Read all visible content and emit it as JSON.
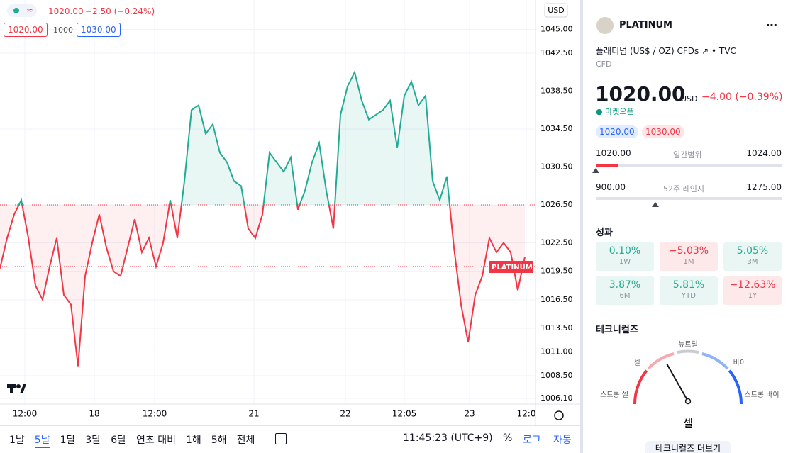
{
  "legend": {
    "price": "1020.00",
    "change": "−2.50 (−0.24%)",
    "bid": "1020.00",
    "spread": "1000",
    "ask": "1030.00"
  },
  "chart_data": {
    "type": "line",
    "currency": "USD",
    "last_price_label": "PLATINUM",
    "values": [
      1019.8,
      1023.0,
      1025.5,
      1027.0,
      1023.0,
      1018.0,
      1016.5,
      1020.0,
      1023.0,
      1017.0,
      1016.0,
      1009.5,
      1019.0,
      1022.5,
      1025.5,
      1022.0,
      1019.5,
      1019.0,
      1022.0,
      1025.0,
      1021.5,
      1023.0,
      1020.0,
      1022.5,
      1027.0,
      1023.0,
      1029.0,
      1036.5,
      1037.0,
      1034.0,
      1035.0,
      1032.0,
      1031.0,
      1029.0,
      1028.5,
      1024.0,
      1023.0,
      1025.5,
      1032.0,
      1031.0,
      1030.0,
      1031.5,
      1026.0,
      1028.0,
      1031.0,
      1033.0,
      1028.0,
      1024.0,
      1036.0,
      1039.0,
      1040.5,
      1037.5,
      1035.5,
      1036.0,
      1036.5,
      1037.5,
      1032.5,
      1038.0,
      1039.5,
      1037.0,
      1038.0,
      1029.0,
      1027.0,
      1029.5,
      1022.0,
      1016.0,
      1012.0,
      1017.0,
      1019.0,
      1023.0,
      1021.5,
      1022.5,
      1021.5,
      1017.5,
      1021.0
    ],
    "baseline": 1026.5,
    "price_line": 1020,
    "up_color": "#22ab94",
    "down_color": "#f23645",
    "grid": true,
    "xlim": [
      0,
      75.5
    ],
    "ylim": [
      1005.5,
      1048.1
    ],
    "yticks": [
      {
        "value": 1045,
        "label": "1045.00"
      },
      {
        "value": 1042.5,
        "label": "1042.50"
      },
      {
        "value": 1038.5,
        "label": "1038.50"
      },
      {
        "value": 1034.5,
        "label": "1034.50"
      },
      {
        "value": 1030.5,
        "label": "1030.50"
      },
      {
        "value": 1026.5,
        "label": "1026.50"
      },
      {
        "value": 1022.5,
        "label": "1022.50"
      },
      {
        "value": 1019.5,
        "label": "1019.50"
      },
      {
        "value": 1016.5,
        "label": "1016.50"
      },
      {
        "value": 1013.5,
        "label": "1013.50"
      },
      {
        "value": 1011,
        "label": "1011.00"
      },
      {
        "value": 1008.5,
        "label": "1008.50"
      },
      {
        "value": 1006.1,
        "label": "1006.10"
      }
    ],
    "xticks": [
      {
        "value": 3.5,
        "label": "12:00"
      },
      {
        "value": 13.3,
        "label": "18"
      },
      {
        "value": 21.8,
        "label": "12:00"
      },
      {
        "value": 35.8,
        "label": "21"
      },
      {
        "value": 48.7,
        "label": "22"
      },
      {
        "value": 57,
        "label": "12:05"
      },
      {
        "value": 66.2,
        "label": "23"
      },
      {
        "value": 74.2,
        "label": "12:0"
      }
    ]
  },
  "toolbar": {
    "ranges": [
      "1날",
      "5날",
      "1달",
      "3달",
      "6달",
      "연초 대비",
      "1해",
      "5해",
      "전체"
    ],
    "active_range": "5날",
    "clock": "11:45:23 (UTC+9)",
    "percent": "%",
    "log": "로그",
    "auto": "자동"
  },
  "panel": {
    "symbol": "PLATINUM",
    "description": "플래티넘 (US$ / OZ) CFDs",
    "exchange": "TVC",
    "kind": "CFD",
    "price": "1020.00",
    "currency": "USD",
    "change": "−4.00 (−0.39%)",
    "status": "마켓오픈",
    "bid": "1020.00",
    "ask": "1030.00",
    "day_range": {
      "low": "1020.00",
      "label": "일간범위",
      "high": "1024.00"
    },
    "year_range": {
      "low": "900.00",
      "label": "52주 레인지",
      "high": "1275.00"
    },
    "performance_title": "성과",
    "performance": [
      {
        "value": "0.10%",
        "period": "1W"
      },
      {
        "value": "−5.03%",
        "period": "1M"
      },
      {
        "value": "5.05%",
        "period": "3M"
      },
      {
        "value": "3.87%",
        "period": "6M"
      },
      {
        "value": "5.81%",
        "period": "YTD"
      },
      {
        "value": "−12.63%",
        "period": "1Y"
      }
    ],
    "technicals_title": "테크니컬즈",
    "gauge": {
      "strong_sell": "스트롱 셀",
      "sell": "셀",
      "neutral": "뉴트럴",
      "buy": "바이",
      "strong_buy": "스트롱 바이"
    },
    "rating": "셀",
    "more": "테크니컬즈 더보기"
  }
}
